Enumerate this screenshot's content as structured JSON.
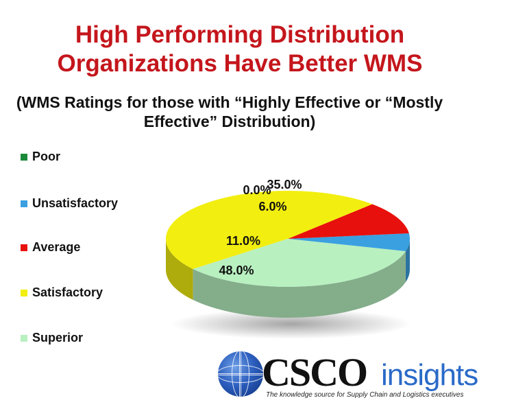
{
  "chart_data": {
    "type": "pie",
    "title": "High Performing Distribution Organizations Have Better WMS",
    "subtitle": "(WMS Ratings for those with “Highly Effective or “Mostly Effective” Distribution)",
    "categories": [
      "Poor",
      "Unsatisfactory",
      "Average",
      "Satisfactory",
      "Superior"
    ],
    "values": [
      0.0,
      6.0,
      11.0,
      48.0,
      35.0
    ],
    "data_labels": [
      "0.0%",
      "6.0%",
      "11.0%",
      "48.0%",
      "35.0%"
    ],
    "colors": [
      "#1a8a3a",
      "#3aa0e0",
      "#e8100c",
      "#f2ee10",
      "#b8f0c0"
    ],
    "legend_position": "left",
    "style": "3d"
  },
  "legend": [
    {
      "label": "Poor",
      "color": "#1a8a3a"
    },
    {
      "label": "Unsatisfactory",
      "color": "#3aa0e0"
    },
    {
      "label": "Average",
      "color": "#e8100c"
    },
    {
      "label": "Satisfactory",
      "color": "#f2ee10"
    },
    {
      "label": "Superior",
      "color": "#b8f0c0"
    }
  ],
  "logo": {
    "brand": "CSCO",
    "brand_suffix": "insights",
    "tagline": "The knowledge source for Supply Chain and Logistics executives"
  }
}
